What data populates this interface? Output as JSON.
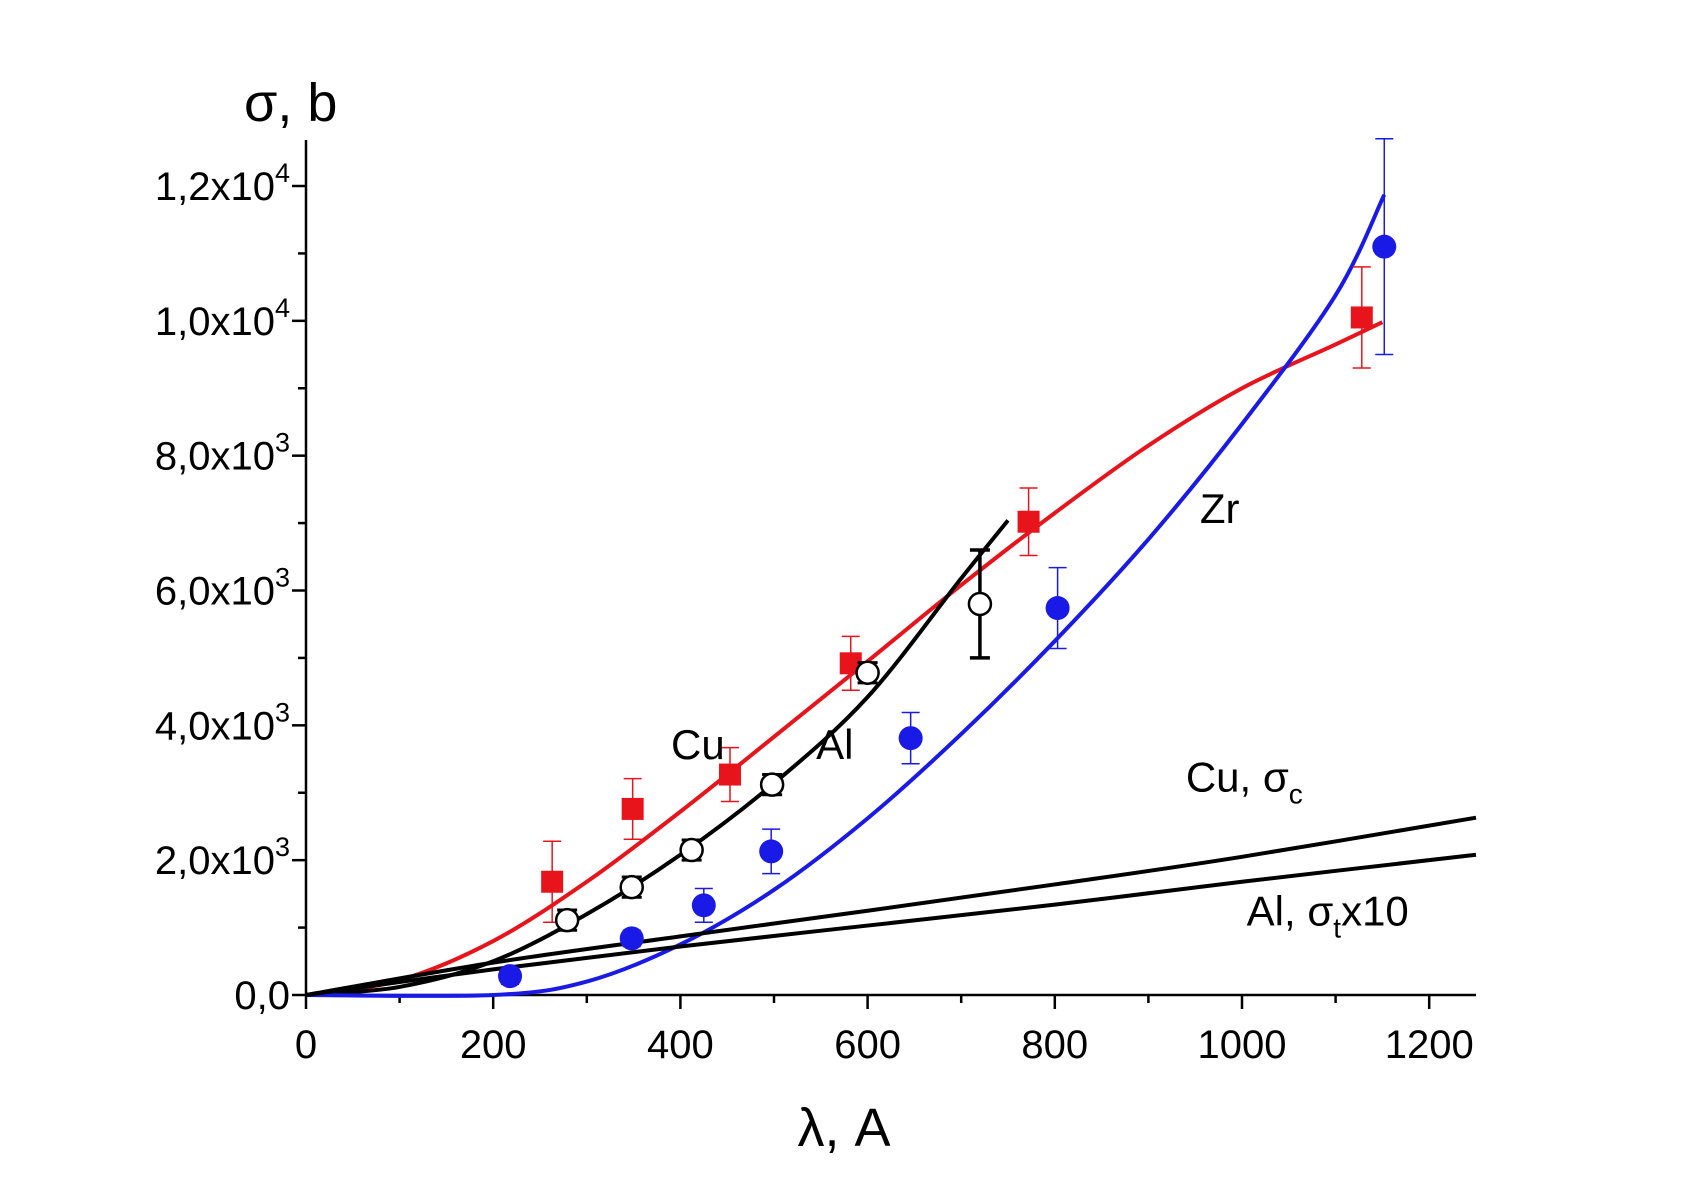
{
  "chart_data": {
    "type": "scatter",
    "title": "",
    "xlabel": "λ, A",
    "ylabel": "σ, b",
    "xlim": [
      0,
      1250
    ],
    "ylim": [
      0,
      12600
    ],
    "grid": false,
    "x_ticks": [
      0,
      200,
      400,
      600,
      800,
      1000,
      1200
    ],
    "y_ticks": [
      {
        "value": 0,
        "mantissa": "0,0",
        "exp": ""
      },
      {
        "value": 2000,
        "mantissa": "2,0x10",
        "exp": "3"
      },
      {
        "value": 4000,
        "mantissa": "4,0x10",
        "exp": "3"
      },
      {
        "value": 6000,
        "mantissa": "6,0x10",
        "exp": "3"
      },
      {
        "value": 8000,
        "mantissa": "8,0x10",
        "exp": "3"
      },
      {
        "value": 10000,
        "mantissa": "1,0x10",
        "exp": "4"
      },
      {
        "value": 12000,
        "mantissa": "1,2x10",
        "exp": "4"
      }
    ],
    "series": [
      {
        "name": "Cu",
        "marker": "filled-square",
        "color": "#e8141c",
        "points": [
          {
            "x": 263,
            "y": 1680,
            "err": 600
          },
          {
            "x": 349,
            "y": 2760,
            "err": 450
          },
          {
            "x": 453,
            "y": 3270,
            "err": 400
          },
          {
            "x": 582,
            "y": 4920,
            "err": 400
          },
          {
            "x": 772,
            "y": 7020,
            "err": 500
          },
          {
            "x": 1128,
            "y": 10050,
            "err": 750
          }
        ],
        "curve": [
          [
            0,
            0
          ],
          [
            100,
            220
          ],
          [
            200,
            800
          ],
          [
            300,
            1680
          ],
          [
            400,
            2720
          ],
          [
            500,
            3830
          ],
          [
            600,
            4950
          ],
          [
            700,
            6080
          ],
          [
            800,
            7150
          ],
          [
            900,
            8150
          ],
          [
            1000,
            9000
          ],
          [
            1100,
            9650
          ],
          [
            1150,
            9980
          ]
        ]
      },
      {
        "name": "Al",
        "marker": "open-circle",
        "color": "#000000",
        "points": [
          {
            "x": 279,
            "y": 1110,
            "err": 150
          },
          {
            "x": 348,
            "y": 1600,
            "err": 150
          },
          {
            "x": 412,
            "y": 2150,
            "err": 150
          },
          {
            "x": 498,
            "y": 3120,
            "err": 150
          },
          {
            "x": 600,
            "y": 4780,
            "err": 150
          },
          {
            "x": 720,
            "y": 5800,
            "err": 800
          }
        ],
        "curve": [
          [
            0,
            0
          ],
          [
            100,
            120
          ],
          [
            200,
            500
          ],
          [
            300,
            1200
          ],
          [
            400,
            2080
          ],
          [
            500,
            3140
          ],
          [
            600,
            4420
          ],
          [
            700,
            6180
          ],
          [
            750,
            7040
          ]
        ]
      },
      {
        "name": "Zr",
        "marker": "filled-circle",
        "color": "#1a1ae6",
        "points": [
          {
            "x": 218,
            "y": 280,
            "err": 120
          },
          {
            "x": 348,
            "y": 840,
            "err": 120
          },
          {
            "x": 425,
            "y": 1330,
            "err": 250
          },
          {
            "x": 497,
            "y": 2130,
            "err": 330
          },
          {
            "x": 646,
            "y": 3810,
            "err": 380
          },
          {
            "x": 803,
            "y": 5740,
            "err": 600
          },
          {
            "x": 1152,
            "y": 11100,
            "err": 1600
          }
        ],
        "curve": [
          [
            0,
            0
          ],
          [
            200,
            0
          ],
          [
            300,
            200
          ],
          [
            400,
            750
          ],
          [
            500,
            1560
          ],
          [
            600,
            2620
          ],
          [
            700,
            3870
          ],
          [
            800,
            5250
          ],
          [
            900,
            6760
          ],
          [
            1000,
            8470
          ],
          [
            1100,
            10380
          ],
          [
            1152,
            11870
          ]
        ]
      },
      {
        "name": "Cu, σc",
        "marker": "line",
        "color": "#000000",
        "curve": [
          [
            0,
            0
          ],
          [
            200,
            480
          ],
          [
            400,
            870
          ],
          [
            600,
            1250
          ],
          [
            800,
            1640
          ],
          [
            1000,
            2050
          ],
          [
            1250,
            2630
          ]
        ]
      },
      {
        "name": "Al, σt x10",
        "marker": "line",
        "color": "#000000",
        "curve": [
          [
            0,
            0
          ],
          [
            200,
            380
          ],
          [
            400,
            720
          ],
          [
            600,
            1030
          ],
          [
            800,
            1340
          ],
          [
            1000,
            1680
          ],
          [
            1250,
            2080
          ]
        ]
      }
    ],
    "annotations": [
      {
        "text": "Cu",
        "x": 390,
        "y": 3500
      },
      {
        "text": "Al",
        "x": 545,
        "y": 3500
      },
      {
        "text": "Zr",
        "x": 955,
        "y": 7000
      },
      {
        "text": "Cu, σ",
        "sub": "c",
        "after": "",
        "x": 940,
        "y": 3020
      },
      {
        "text": "Al, σ",
        "sub": "t",
        "after": "x10",
        "x": 1005,
        "y": 1030
      }
    ]
  }
}
